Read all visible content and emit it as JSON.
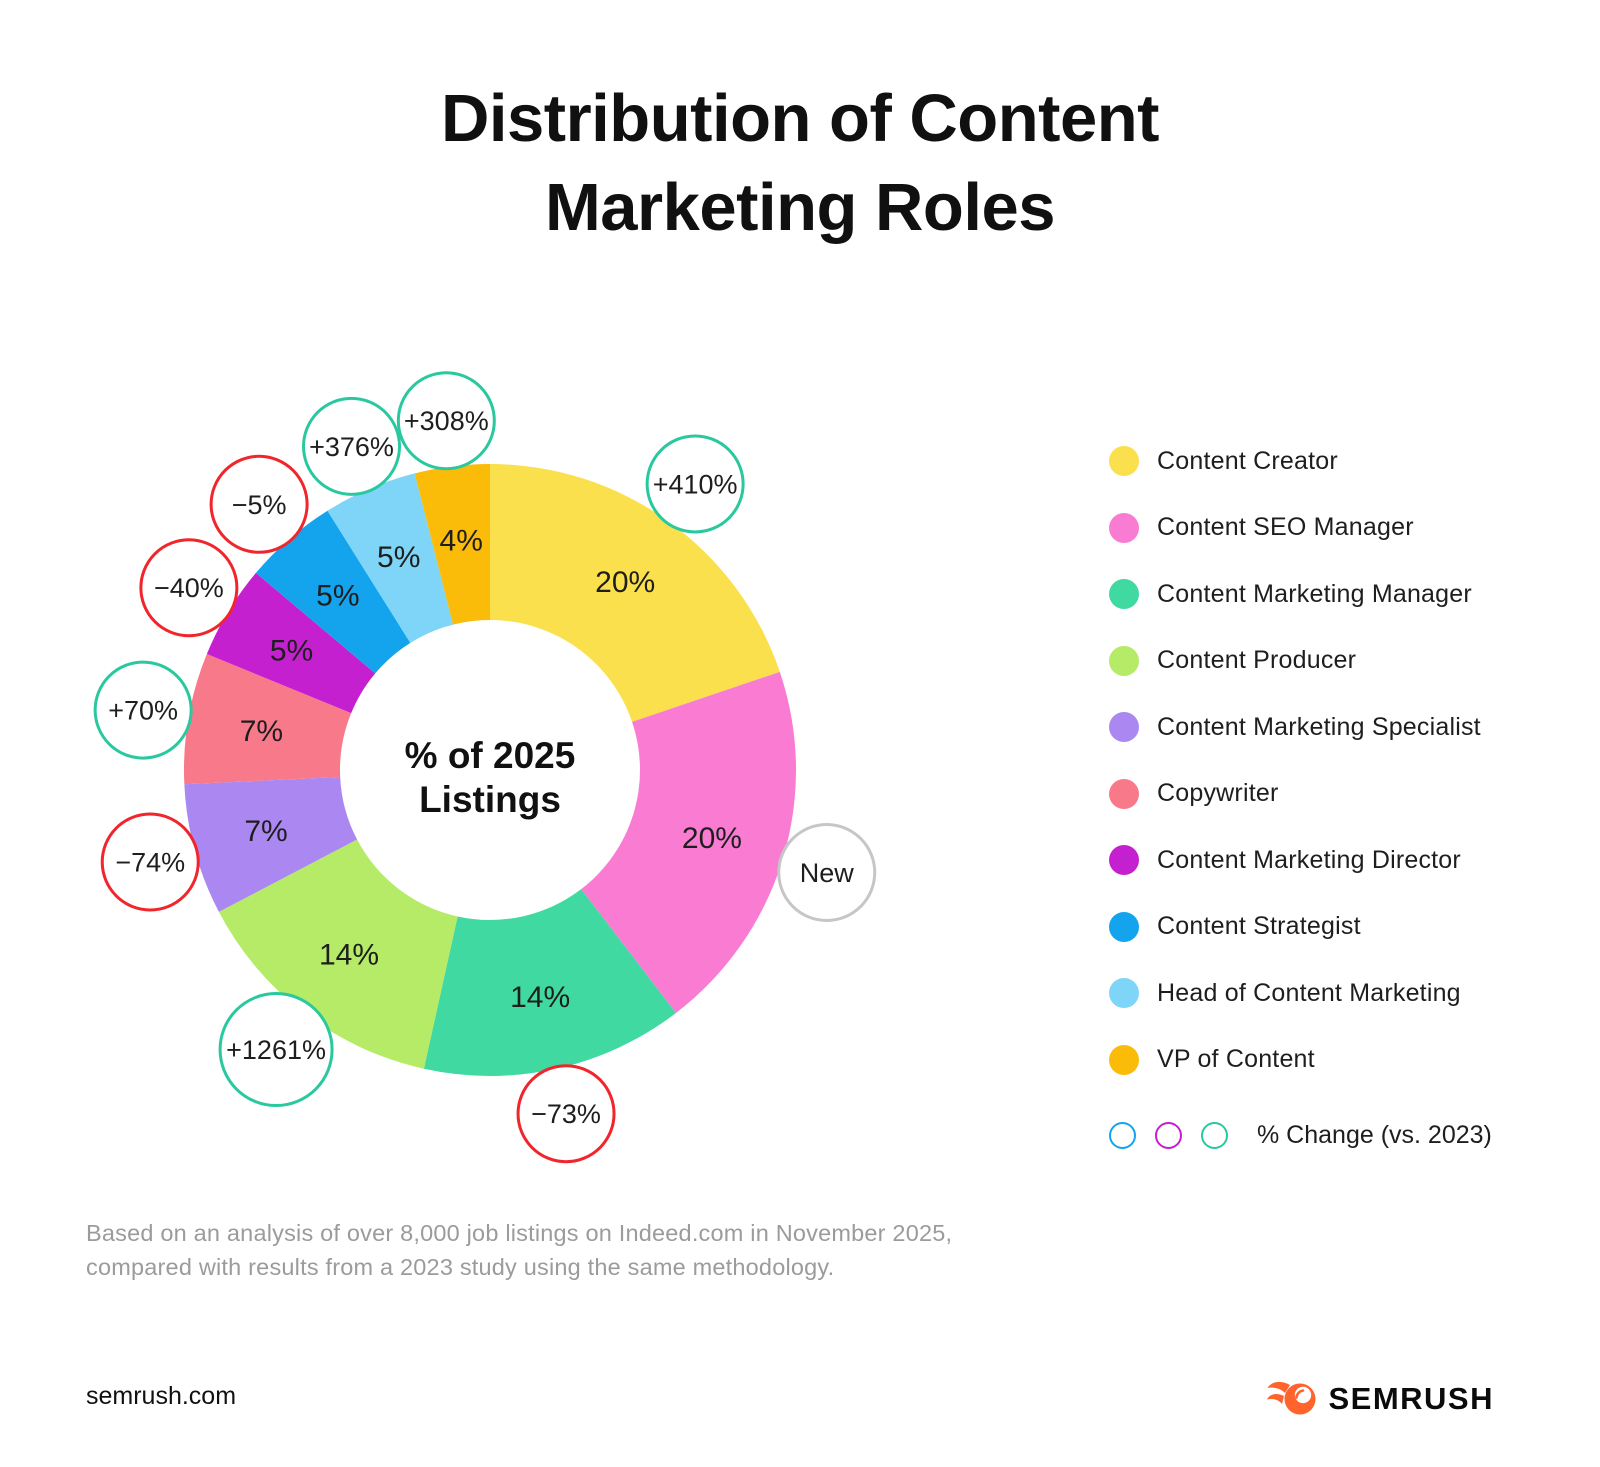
{
  "title": {
    "line1": "Distribution of Content",
    "line2": "Marketing Roles"
  },
  "chart_data": {
    "type": "pie",
    "subtype": "donut",
    "title": "Distribution of Content Marketing Roles",
    "center_label": [
      "% of 2025",
      "Listings"
    ],
    "start_angle_deg": 0,
    "direction": "clockwise",
    "segments": [
      {
        "label": "Content Creator",
        "value": 20,
        "display": "20%",
        "color": "#FAE04D",
        "change": "+410%",
        "change_type": "increase"
      },
      {
        "label": "Content SEO Manager",
        "value": 20,
        "display": "20%",
        "color": "#F97CD2",
        "change": "New",
        "change_type": "new"
      },
      {
        "label": "Content Marketing Manager",
        "value": 14,
        "display": "14%",
        "color": "#3FD9A1",
        "change": "−73%",
        "change_type": "decrease"
      },
      {
        "label": "Content Producer",
        "value": 14,
        "display": "14%",
        "color": "#B5EB66",
        "change": "+1261%",
        "change_type": "increase"
      },
      {
        "label": "Content Marketing Specialist",
        "value": 7,
        "display": "7%",
        "color": "#AB87F2",
        "change": "−74%",
        "change_type": "decrease"
      },
      {
        "label": "Copywriter",
        "value": 7,
        "display": "7%",
        "color": "#F7798A",
        "change": "+70%",
        "change_type": "increase"
      },
      {
        "label": "Content Marketing Director",
        "value": 5,
        "display": "5%",
        "color": "#C520CF",
        "change": "−40%",
        "change_type": "decrease"
      },
      {
        "label": "Content Strategist",
        "value": 5,
        "display": "5%",
        "color": "#14A4EE",
        "change": "−5%",
        "change_type": "decrease"
      },
      {
        "label": "Head of Content Marketing",
        "value": 5,
        "display": "5%",
        "color": "#7ED5F7",
        "change": "+376%",
        "change_type": "increase"
      },
      {
        "label": "VP of Content",
        "value": 4,
        "display": "4%",
        "color": "#FBBC09",
        "change": "+308%",
        "change_type": "increase"
      }
    ],
    "change_colors": {
      "increase": "#2AC89E",
      "decrease": "#F0262C",
      "new": "#C6C6C6"
    }
  },
  "legend": {
    "change_legend": {
      "label": "% Change (vs. 2023)",
      "circle_colors": [
        "#14A4EE",
        "#C520CF",
        "#2AC89E"
      ]
    }
  },
  "footnote": {
    "line1": "Based on an analysis of over 8,000 job listings on Indeed.com in November 2025,",
    "line2": "compared with results from a 2023 study using the same methodology."
  },
  "footer": {
    "site": "semrush.com",
    "brand": "SEMRUSH",
    "brand_color": "#FF642D"
  }
}
